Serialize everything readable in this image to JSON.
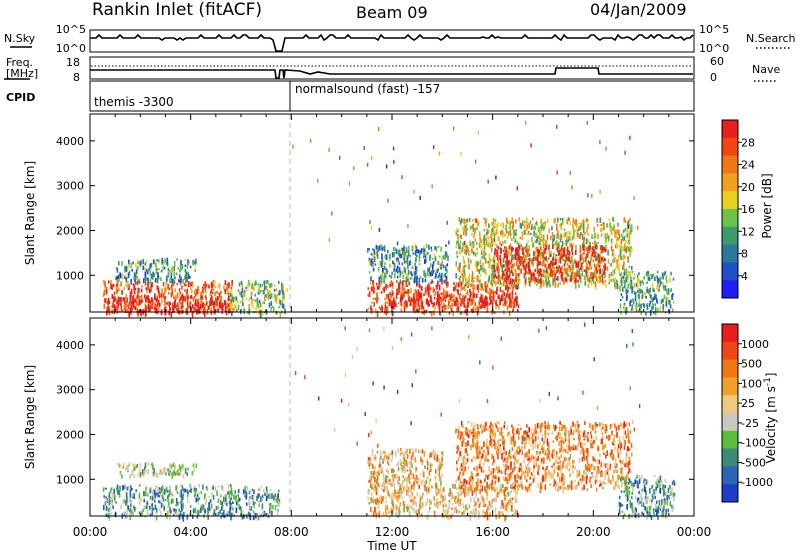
{
  "header": {
    "station": "Rankin Inlet (fitACF)",
    "beam": "Beam 09",
    "date": "04/Jan/2009"
  },
  "top_panels": {
    "nsky_label": "N.Sky",
    "nsearch_label": "N.Search",
    "nsky_ticks": [
      "10^5",
      "10^0"
    ],
    "nsearch_ticks": [
      "10^5",
      "10^0"
    ],
    "freq_label_1": "Freq.",
    "freq_label_2": "[MHz]",
    "freq_ticks": [
      "18",
      "8"
    ],
    "nave_label": "Nave",
    "nave_ticks": [
      "60",
      "0"
    ],
    "cpid_label": "CPID",
    "cpid_segments": [
      {
        "text": "themis -3300",
        "start_hour": 0.0
      },
      {
        "text": "normalsound (fast) -157",
        "start_hour": 8.0
      }
    ]
  },
  "x_axis": {
    "label": "Time UT",
    "ticks": [
      "00:00",
      "04:00",
      "08:00",
      "12:00",
      "16:00",
      "20:00",
      "00:00"
    ]
  },
  "chart_data": [
    {
      "type": "heatmap",
      "name": "power",
      "ylabel": "Slant Range [km]",
      "xlim": [
        0,
        24
      ],
      "ylim": [
        180,
        4600
      ],
      "yticks": [
        "1000",
        "2000",
        "3000",
        "4000"
      ],
      "colorbar": {
        "label": "Power [dB]",
        "ticks": [
          "4",
          "8",
          "12",
          "16",
          "20",
          "24",
          "28"
        ],
        "colors": [
          "#1e1ef0",
          "#1e50c8",
          "#2a78a0",
          "#3c9a6e",
          "#6ac24a",
          "#e6d21e",
          "#f0a01e",
          "#f07814",
          "#f04614",
          "#e61e1e"
        ]
      },
      "regions": [
        {
          "t0": 0.5,
          "t1": 5.7,
          "r0": 200,
          "r1": 900,
          "level": 0.8
        },
        {
          "t0": 1.0,
          "t1": 4.2,
          "r0": 900,
          "r1": 1400,
          "level": 0.3
        },
        {
          "t0": 0.7,
          "t1": 5.5,
          "r0": 180,
          "r1": 560,
          "level": 1.0
        },
        {
          "t0": 5.5,
          "t1": 7.8,
          "r0": 180,
          "r1": 900,
          "level": 0.45
        },
        {
          "t0": 11.0,
          "t1": 17.0,
          "r0": 180,
          "r1": 900,
          "level": 0.85
        },
        {
          "t0": 11.8,
          "t1": 17.0,
          "r0": 350,
          "r1": 600,
          "level": 1.0
        },
        {
          "t0": 11.0,
          "t1": 14.2,
          "r0": 900,
          "r1": 1700,
          "level": 0.3
        },
        {
          "t0": 14.5,
          "t1": 21.5,
          "r0": 800,
          "r1": 2300,
          "level": 0.55
        },
        {
          "t0": 16.0,
          "t1": 20.5,
          "r0": 900,
          "r1": 1700,
          "level": 0.95
        },
        {
          "t0": 21.0,
          "t1": 23.2,
          "r0": 180,
          "r1": 1100,
          "level": 0.35
        }
      ]
    },
    {
      "type": "heatmap",
      "name": "velocity",
      "ylabel": "Slant Range [km]",
      "xlim": [
        0,
        24
      ],
      "ylim": [
        180,
        4600
      ],
      "yticks": [
        "1000",
        "2000",
        "3000",
        "4000"
      ],
      "colorbar": {
        "label": "Velocity [m s^-1]",
        "ticks": [
          "1000",
          "500",
          "100",
          "25",
          "-25",
          "-100",
          "-500",
          "-1000"
        ],
        "colors": [
          "#1e3cc8",
          "#2a64b4",
          "#3c8a78",
          "#5abe3c",
          "#c8c8c0",
          "#f0c880",
          "#f0a028",
          "#f07814",
          "#f04614",
          "#e61e1e"
        ]
      },
      "regions": [
        {
          "t0": 0.5,
          "t1": 5.7,
          "r0": 180,
          "r1": 900,
          "level": 0.3
        },
        {
          "t0": 1.0,
          "t1": 4.2,
          "r0": 1100,
          "r1": 1400,
          "level": 0.45
        },
        {
          "t0": 5.5,
          "t1": 7.5,
          "r0": 180,
          "r1": 850,
          "level": 0.3
        },
        {
          "t0": 11.0,
          "t1": 17.0,
          "r0": 180,
          "r1": 900,
          "level": 0.6
        },
        {
          "t0": 11.0,
          "t1": 14.0,
          "r0": 900,
          "r1": 1700,
          "level": 0.6
        },
        {
          "t0": 14.5,
          "t1": 21.5,
          "r0": 800,
          "r1": 2300,
          "level": 0.7
        },
        {
          "t0": 21.0,
          "t1": 23.2,
          "r0": 180,
          "r1": 1100,
          "level": 0.3
        }
      ]
    }
  ]
}
